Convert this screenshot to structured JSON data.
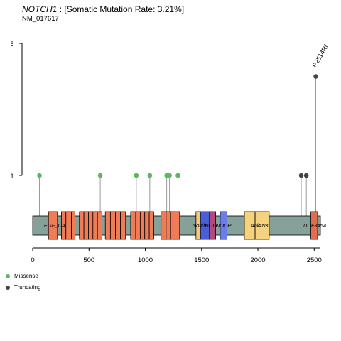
{
  "header": {
    "gene": "NOTCH1",
    "rate_text": ": [Somatic Mutation Rate: 3.21%]",
    "transcript": "NM_017617"
  },
  "chart_data": {
    "type": "lollipop",
    "x_range": [
      0,
      2555
    ],
    "x_ticks": [
      0,
      500,
      1000,
      1500,
      2000,
      2500
    ],
    "y_ticks": [
      1,
      5
    ],
    "y_display_max": 5,
    "protein_length": 2555,
    "colors": {
      "Missense": "#5cb85c",
      "Truncating": "#444444",
      "backbone": "#86a09a",
      "EGF_CA": "#ef7c57",
      "Notch": "#f5c87a",
      "NOD": "#4a5fd6",
      "NOD_mid": "#b24a7b",
      "NODP": "#6b7de6",
      "Ank": "#f5d27e",
      "DUF3454": "#e26d4f"
    },
    "domains": [
      {
        "name": "EGF_CA",
        "start": 140,
        "end": 220,
        "color_key": "EGF_CA",
        "show_label": false
      },
      {
        "name": "EGF_CA",
        "start": 255,
        "end": 295,
        "color_key": "EGF_CA",
        "show_label": false
      },
      {
        "name": "EGF_CA",
        "start": 295,
        "end": 345,
        "color_key": "EGF_CA",
        "show_label": false
      },
      {
        "name": "EGF_CA",
        "start": 345,
        "end": 375,
        "color_key": "EGF_CA",
        "show_label": false
      },
      {
        "name": "EGF_CA",
        "start": 415,
        "end": 455,
        "color_key": "EGF_CA",
        "show_label": false
      },
      {
        "name": "EGF_CA",
        "start": 455,
        "end": 495,
        "color_key": "EGF_CA",
        "show_label": false
      },
      {
        "name": "EGF_CA",
        "start": 495,
        "end": 535,
        "color_key": "EGF_CA",
        "show_label": false
      },
      {
        "name": "EGF_CA",
        "start": 535,
        "end": 575,
        "color_key": "EGF_CA",
        "show_label": false
      },
      {
        "name": "EGF_CA",
        "start": 575,
        "end": 615,
        "color_key": "EGF_CA",
        "show_label": false
      },
      {
        "name": "EGF_CA",
        "start": 645,
        "end": 690,
        "color_key": "EGF_CA",
        "show_label": false
      },
      {
        "name": "EGF_CA",
        "start": 690,
        "end": 735,
        "color_key": "EGF_CA",
        "show_label": false
      },
      {
        "name": "EGF_CA",
        "start": 735,
        "end": 780,
        "color_key": "EGF_CA",
        "show_label": false
      },
      {
        "name": "EGF_CA",
        "start": 780,
        "end": 825,
        "color_key": "EGF_CA",
        "show_label": false
      },
      {
        "name": "EGF_CA",
        "start": 870,
        "end": 915,
        "color_key": "EGF_CA",
        "show_label": false
      },
      {
        "name": "EGF_CA",
        "start": 915,
        "end": 955,
        "color_key": "EGF_CA",
        "show_label": false
      },
      {
        "name": "EGF_CA",
        "start": 955,
        "end": 995,
        "color_key": "EGF_CA",
        "show_label": false
      },
      {
        "name": "EGF_CA",
        "start": 995,
        "end": 1035,
        "color_key": "EGF_CA",
        "show_label": false
      },
      {
        "name": "EGF_CA",
        "start": 1035,
        "end": 1075,
        "color_key": "EGF_CA",
        "show_label": false
      },
      {
        "name": "EGF_CA",
        "start": 1140,
        "end": 1185,
        "color_key": "EGF_CA",
        "show_label": false
      },
      {
        "name": "EGF_CA",
        "start": 1185,
        "end": 1225,
        "color_key": "EGF_CA",
        "show_label": false
      },
      {
        "name": "EGF_CA",
        "start": 1225,
        "end": 1265,
        "color_key": "EGF_CA",
        "show_label": false
      },
      {
        "name": "EGF_CA",
        "start": 1265,
        "end": 1305,
        "color_key": "EGF_CA",
        "show_label": false
      },
      {
        "name": "Notch",
        "start": 1450,
        "end": 1490,
        "color_key": "Notch",
        "show_label": false
      },
      {
        "name": "Notch",
        "start": 1490,
        "end": 1530,
        "color_key": "NOD",
        "show_label": false
      },
      {
        "name": "Notch",
        "start": 1530,
        "end": 1570,
        "color_key": "NOD",
        "show_label": false
      },
      {
        "name": "NOD",
        "start": 1570,
        "end": 1625,
        "color_key": "NOD_mid",
        "show_label": false
      },
      {
        "name": "NODP",
        "start": 1665,
        "end": 1725,
        "color_key": "NODP",
        "show_label": false
      },
      {
        "name": "Ank",
        "start": 1880,
        "end": 1975,
        "color_key": "Ank",
        "show_label": false
      },
      {
        "name": "Ank",
        "start": 1975,
        "end": 2010,
        "color_key": "Ank",
        "show_label": false
      },
      {
        "name": "Ank",
        "start": 2010,
        "end": 2100,
        "color_key": "Ank",
        "show_label": false
      },
      {
        "name": "DUF3454",
        "start": 2470,
        "end": 2530,
        "color_key": "DUF3454",
        "show_label": false
      }
    ],
    "domain_labels": [
      {
        "text": "EGF_CA",
        "x": 195
      },
      {
        "text": "Notch",
        "x": 1480
      },
      {
        "text": "NOD",
        "x": 1580
      },
      {
        "text": "NODP",
        "x": 1695
      },
      {
        "text": "Ank",
        "x": 1975
      },
      {
        "text": "ANK",
        "x": 2050
      },
      {
        "text": "DUF3454",
        "x": 2505
      }
    ],
    "mutations": [
      {
        "pos": 60,
        "count": 1,
        "type": "Missense",
        "label": ""
      },
      {
        "pos": 600,
        "count": 1,
        "type": "Missense",
        "label": ""
      },
      {
        "pos": 920,
        "count": 1,
        "type": "Missense",
        "label": ""
      },
      {
        "pos": 1040,
        "count": 1,
        "type": "Missense",
        "label": ""
      },
      {
        "pos": 1190,
        "count": 1,
        "type": "Missense",
        "label": ""
      },
      {
        "pos": 1215,
        "count": 1,
        "type": "Missense",
        "label": ""
      },
      {
        "pos": 1290,
        "count": 1,
        "type": "Missense",
        "label": ""
      },
      {
        "pos": 2385,
        "count": 1,
        "type": "Truncating",
        "label": ""
      },
      {
        "pos": 2430,
        "count": 1,
        "type": "Truncating",
        "label": ""
      },
      {
        "pos": 2514,
        "count": 4,
        "type": "Truncating",
        "label": "P2514Rf"
      }
    ],
    "legend": [
      {
        "label": "Missense",
        "color_key": "Missense"
      },
      {
        "label": "Truncating",
        "color_key": "Truncating"
      }
    ]
  }
}
